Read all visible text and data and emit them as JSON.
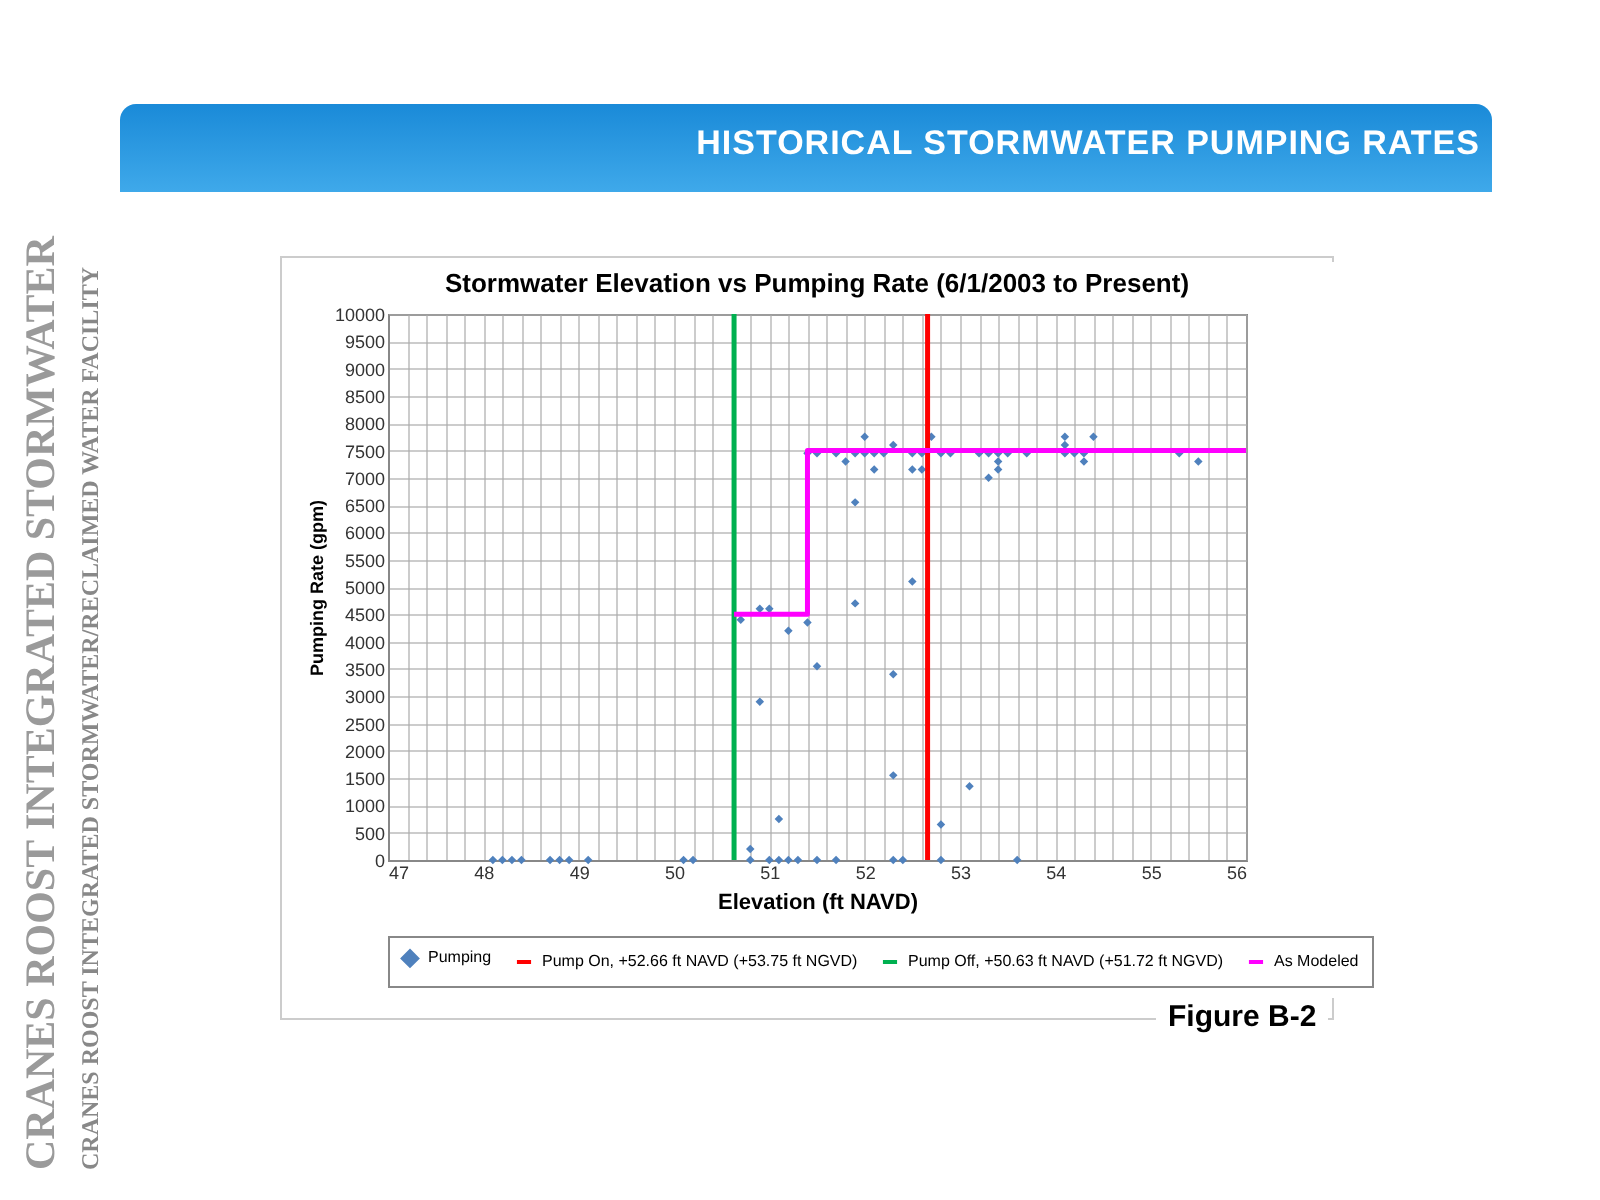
{
  "chart_data": {
    "type": "scatter",
    "title": "HISTORICAL  STORMWATER PUMPING RATES",
    "subtitle": "Stormwater Elevation vs Pumping Rate (6/1/2003 to Present)",
    "xlabel": "Elevation (ft NAVD)",
    "ylabel": "Pumping Rate (gpm)",
    "annotations": [
      "Figure B-2",
      "CRANES ROOST INTEGRATED STORMWATER",
      "CRANES ROOST INTEGRATED STORMWATER/RECLAIMED WATER FACILITY"
    ],
    "xlim": [
      47,
      56
    ],
    "ylim": [
      0,
      10000
    ],
    "xticks": [
      47,
      {
        "value": 47.2,
        "label": null
      },
      {
        "value": 47.4,
        "label": null
      },
      {
        "value": 47.6,
        "label": null
      },
      {
        "value": 47.8,
        "label": null
      },
      48,
      {
        "value": 48.2,
        "label": null
      },
      {
        "value": 48.4,
        "label": null
      },
      {
        "value": 48.6,
        "label": null
      },
      {
        "value": 48.8,
        "label": null
      },
      49,
      {
        "value": 49.2,
        "label": null
      },
      {
        "value": 49.4,
        "label": null
      },
      {
        "value": 49.6,
        "label": null
      },
      {
        "value": 49.8,
        "label": null
      },
      50,
      {
        "value": 50.2,
        "label": null
      },
      {
        "value": 50.4,
        "label": null
      },
      {
        "value": 50.6,
        "label": null
      },
      {
        "value": 50.8,
        "label": null
      },
      51,
      {
        "value": 51.2,
        "label": null
      },
      {
        "value": 51.4,
        "label": null
      },
      {
        "value": 51.6,
        "label": null
      },
      {
        "value": 51.8,
        "label": null
      },
      52,
      {
        "value": 52.2,
        "label": null
      },
      {
        "value": 52.4,
        "label": null
      },
      {
        "value": 52.6,
        "label": null
      },
      {
        "value": 52.8,
        "label": null
      },
      53,
      {
        "value": 53.2,
        "label": null
      },
      {
        "value": 53.4,
        "label": null
      },
      {
        "value": 53.6,
        "label": null
      },
      {
        "value": 53.8,
        "label": null
      },
      54,
      {
        "value": 54.2,
        "label": null
      },
      {
        "value": 54.4,
        "label": null
      },
      {
        "value": 54.6,
        "label": null
      },
      {
        "value": 54.8,
        "label": null
      },
      55,
      {
        "value": 55.2,
        "label": null
      },
      {
        "value": 55.4,
        "label": null
      },
      {
        "value": 55.6,
        "label": null
      },
      {
        "value": 55.8,
        "label": null
      },
      56
    ],
    "yticks": [
      0,
      500,
      1000,
      1500,
      2000,
      2500,
      3000,
      3500,
      4000,
      4500,
      5000,
      5500,
      6000,
      6500,
      7000,
      7500,
      8000,
      8500,
      9000,
      9500,
      10000
    ],
    "grid": true,
    "legend": "bottom",
    "series": [
      {
        "name": "Pumping",
        "marker": "diamond",
        "color": "#4f81bd",
        "x": [
          48.1,
          48.2,
          48.3,
          48.4,
          48.7,
          48.8,
          48.9,
          49.1,
          50.1,
          50.2,
          50.8,
          51.0,
          51.1,
          51.2,
          51.3,
          51.5,
          51.7,
          52.3,
          52.4,
          52.8,
          53.6,
          50.8,
          51.1,
          50.9,
          50.7,
          50.9,
          51.0,
          51.2,
          51.4,
          51.5,
          51.9,
          51.9,
          52.5,
          52.3,
          52.3,
          53.1,
          52.8,
          51.4,
          51.5,
          51.7,
          51.9,
          52.0,
          52.1,
          52.2,
          52.5,
          52.6,
          52.8,
          52.9,
          53.2,
          53.3,
          53.4,
          53.5,
          53.7,
          54.1,
          54.2,
          54.3,
          55.3,
          52.0,
          52.7,
          54.1,
          54.4,
          52.3,
          54.1,
          51.8,
          53.4,
          54.3,
          55.5,
          52.1,
          52.5,
          52.6,
          53.4,
          53.3
        ],
        "values": [
          0,
          0,
          0,
          0,
          0,
          0,
          0,
          0,
          0,
          0,
          0,
          0,
          0,
          0,
          0,
          0,
          0,
          0,
          0,
          0,
          0,
          200,
          750,
          2900,
          4400,
          4600,
          4600,
          4200,
          4350,
          3550,
          4700,
          6550,
          5100,
          3400,
          1550,
          1350,
          650,
          7450,
          7450,
          7450,
          7450,
          7450,
          7450,
          7450,
          7450,
          7450,
          7450,
          7450,
          7450,
          7450,
          7450,
          7450,
          7450,
          7450,
          7450,
          7450,
          7450,
          7750,
          7750,
          7750,
          7750,
          7600,
          7600,
          7300,
          7300,
          7300,
          7300,
          7150,
          7150,
          7150,
          7150,
          7000
        ]
      },
      {
        "name": "Pump On, +52.66 ft NAVD (+53.75 ft NGVD)",
        "type": "line",
        "color": "#ff0000",
        "x": [
          52.66,
          52.66
        ],
        "values": [
          0,
          10000
        ]
      },
      {
        "name": "Pump Off, +50.63 ft NAVD (+51.72 ft NGVD)",
        "type": "line",
        "color": "#00b050",
        "x": [
          50.63,
          50.63
        ],
        "values": [
          0,
          10000
        ]
      },
      {
        "name": "As Modeled",
        "type": "line",
        "color": "#ff00ff",
        "x": [
          50.63,
          51.4,
          51.4,
          56
        ],
        "values": [
          4500,
          4500,
          7500,
          7500
        ]
      }
    ]
  }
}
